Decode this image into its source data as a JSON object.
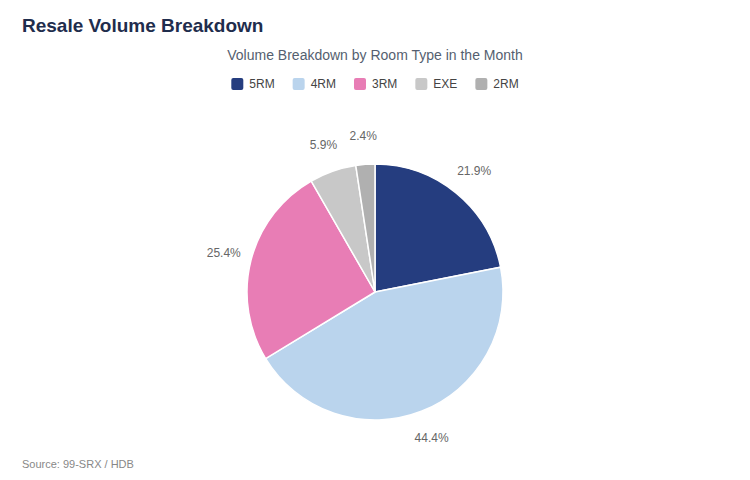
{
  "chart_data": {
    "type": "pie",
    "title": "Resale Volume Breakdown",
    "subtitle": "Volume Breakdown by Room Type in the Month",
    "categories": [
      "5RM",
      "4RM",
      "3RM",
      "EXE",
      "2RM"
    ],
    "values": [
      21.9,
      44.4,
      25.4,
      5.9,
      2.4
    ],
    "value_labels": [
      "21.9%",
      "44.4%",
      "25.4%",
      "5.9%",
      "2.4%"
    ],
    "colors": [
      "#253d7f",
      "#bad4ed",
      "#e87db5",
      "#c8c8c8",
      "#b0b0b0"
    ],
    "data_labels": true,
    "legend": "top",
    "annotations": [
      "Source: 99-SRX / HDB"
    ]
  }
}
